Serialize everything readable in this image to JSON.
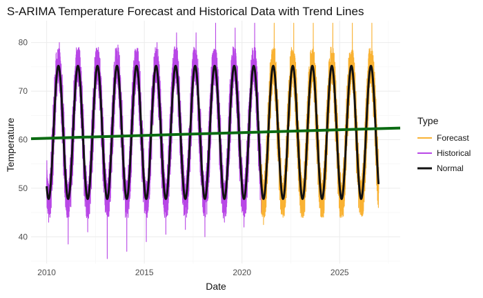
{
  "chart_data": {
    "type": "line",
    "title": "S-ARIMA Temperature Forecast and Historical Data with Trend Lines",
    "xlabel": "Date",
    "ylabel": "Temperature",
    "xlim": [
      2009.2,
      2028.1
    ],
    "ylim": [
      34.5,
      84.5
    ],
    "x_ticks": [
      2010,
      2015,
      2020,
      2025
    ],
    "y_ticks": [
      40,
      50,
      60,
      70,
      80
    ],
    "grid": true,
    "legend": {
      "title": "Type",
      "position": "right",
      "entries": [
        "Forecast",
        "Historical",
        "Normal"
      ]
    },
    "colors": {
      "Forecast": "#F9B233",
      "Historical": "#B847E6",
      "Normal": "#111111",
      "Trend": "#0B6B12"
    },
    "series": [
      {
        "name": "Historical",
        "x_range": [
          2010.0,
          2021.0
        ],
        "peaks": [
          {
            "x": 2010.65,
            "y": 80.0
          },
          {
            "x": 2011.65,
            "y": 79.0
          },
          {
            "x": 2012.65,
            "y": 79.0
          },
          {
            "x": 2013.65,
            "y": 79.5
          },
          {
            "x": 2014.65,
            "y": 78.0
          },
          {
            "x": 2015.65,
            "y": 80.0
          },
          {
            "x": 2016.65,
            "y": 82.0
          },
          {
            "x": 2017.65,
            "y": 82.0
          },
          {
            "x": 2018.65,
            "y": 84.0
          },
          {
            "x": 2019.65,
            "y": 83.0
          },
          {
            "x": 2020.65,
            "y": 84.0
          }
        ],
        "troughs": [
          {
            "x": 2010.1,
            "y": 43.0
          },
          {
            "x": 2011.1,
            "y": 38.5
          },
          {
            "x": 2012.1,
            "y": 41.0
          },
          {
            "x": 2013.1,
            "y": 35.5
          },
          {
            "x": 2014.1,
            "y": 37.0
          },
          {
            "x": 2015.1,
            "y": 39.0
          },
          {
            "x": 2016.1,
            "y": 40.5
          },
          {
            "x": 2017.1,
            "y": 41.5
          },
          {
            "x": 2018.1,
            "y": 40.0
          },
          {
            "x": 2019.1,
            "y": 43.0
          },
          {
            "x": 2020.1,
            "y": 42.0
          }
        ]
      },
      {
        "name": "Forecast",
        "x_range": [
          2021.0,
          2027.0
        ],
        "peaks": [
          {
            "x": 2021.65,
            "y": 84.0
          },
          {
            "x": 2022.65,
            "y": 84.0
          },
          {
            "x": 2023.65,
            "y": 84.0
          },
          {
            "x": 2024.65,
            "y": 84.0
          },
          {
            "x": 2025.65,
            "y": 84.0
          },
          {
            "x": 2026.65,
            "y": 84.0
          }
        ],
        "troughs": [
          {
            "x": 2021.1,
            "y": 42.5
          },
          {
            "x": 2022.1,
            "y": 44.0
          },
          {
            "x": 2023.1,
            "y": 44.0
          },
          {
            "x": 2024.1,
            "y": 44.0
          },
          {
            "x": 2025.1,
            "y": 44.0
          },
          {
            "x": 2026.1,
            "y": 44.5
          }
        ]
      },
      {
        "name": "Normal",
        "x_range": [
          2010.0,
          2027.0
        ],
        "mean": 61.5,
        "amplitude": 13.7,
        "period_years": 1,
        "peak_phase": 0.6
      },
      {
        "name": "Trend",
        "x_range": [
          2009.2,
          2028.1
        ],
        "y_start": 60.2,
        "y_end": 62.4
      }
    ]
  }
}
